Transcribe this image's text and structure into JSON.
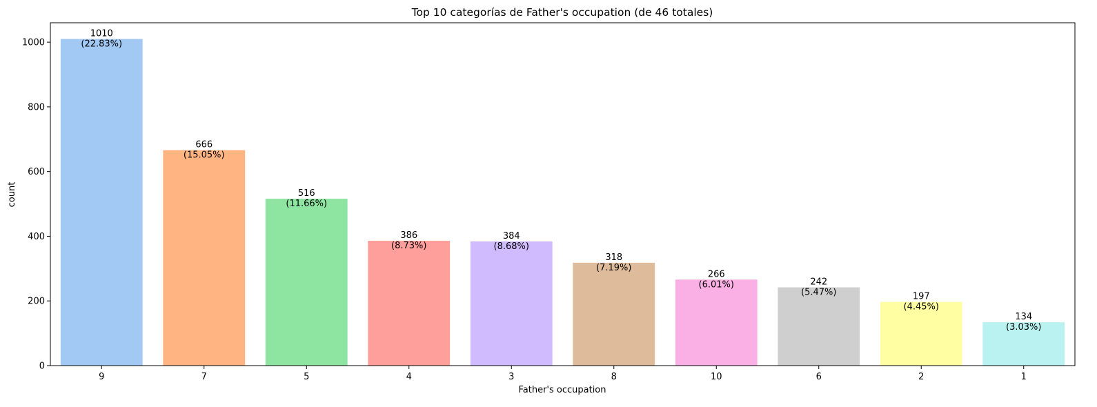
{
  "chart_data": {
    "type": "bar",
    "title": "Top 10 categorías de Father's occupation (de 46 totales)",
    "xlabel": "Father's occupation",
    "ylabel": "count",
    "categories": [
      "9",
      "7",
      "5",
      "4",
      "3",
      "8",
      "10",
      "6",
      "2",
      "1"
    ],
    "values": [
      1010,
      666,
      516,
      386,
      384,
      318,
      266,
      242,
      197,
      134
    ],
    "percent_labels": [
      "(22.83%)",
      "(15.05%)",
      "(11.66%)",
      "(8.73%)",
      "(8.68%)",
      "(7.19%)",
      "(6.01%)",
      "(5.47%)",
      "(4.45%)",
      "(3.03%)"
    ],
    "colors": [
      "#a1c9f4",
      "#ffb482",
      "#8de5a1",
      "#ff9f9b",
      "#d0bbff",
      "#debb9b",
      "#fab0e4",
      "#cfcfcf",
      "#fffea3",
      "#b9f2f0"
    ],
    "yticks": [
      0,
      200,
      400,
      600,
      800,
      1000
    ],
    "ylim": [
      0,
      1060
    ],
    "grid": false,
    "legend": "none"
  }
}
